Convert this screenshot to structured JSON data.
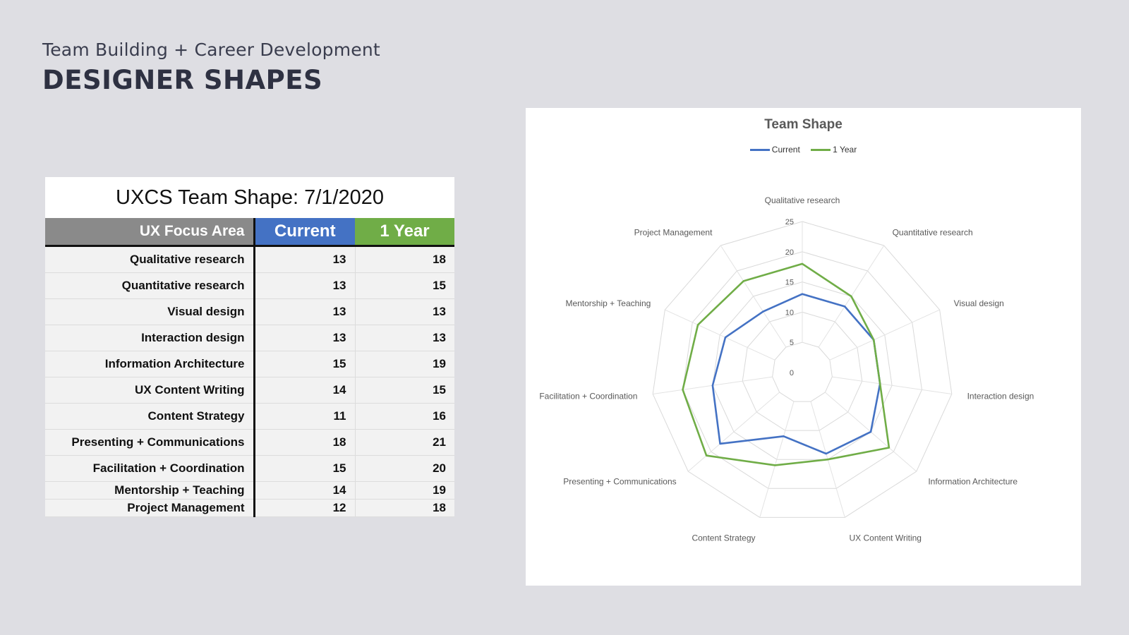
{
  "slide": {
    "subtitle": "Team Building + Career Development",
    "title": "DESIGNER SHAPES"
  },
  "table": {
    "title": "UXCS Team Shape: 7/1/2020",
    "headers": [
      "UX Focus Area",
      "Current",
      "1 Year"
    ],
    "rows": [
      [
        "Qualitative research",
        13,
        18
      ],
      [
        "Quantitative research",
        13,
        15
      ],
      [
        "Visual design",
        13,
        13
      ],
      [
        "Interaction design",
        13,
        13
      ],
      [
        "Information Architecture",
        15,
        19
      ],
      [
        "UX Content Writing",
        14,
        15
      ],
      [
        "Content Strategy",
        11,
        16
      ],
      [
        "Presenting + Communications",
        18,
        21
      ],
      [
        "Facilitation + Coordination",
        15,
        20
      ],
      [
        "Mentorship + Teaching",
        14,
        19
      ],
      [
        "Project Management",
        12,
        18
      ]
    ]
  },
  "chart_data": {
    "type": "radar",
    "title": "Team Shape",
    "categories": [
      "Qualitative research",
      "Quantitative research",
      "Visual design",
      "Interaction design",
      "Information Architecture",
      "UX Content Writing",
      "Content Strategy",
      "Presenting + Communications",
      "Facilitation + Coordination",
      "Mentorship + Teaching",
      "Project Management"
    ],
    "series": [
      {
        "name": "Current",
        "color": "#4472c4",
        "values": [
          13,
          13,
          13,
          13,
          15,
          14,
          11,
          18,
          15,
          14,
          12
        ]
      },
      {
        "name": "1 Year",
        "color": "#70ad47",
        "values": [
          18,
          15,
          13,
          13,
          19,
          15,
          16,
          21,
          20,
          19,
          18
        ]
      }
    ],
    "rlim": [
      0,
      25
    ],
    "ticks": [
      0,
      5,
      10,
      15,
      20,
      25
    ],
    "grid": true,
    "legend": "top"
  },
  "colors": {
    "current": "#4472c4",
    "year": "#70ad47",
    "header_gray": "#8a8a8a"
  }
}
